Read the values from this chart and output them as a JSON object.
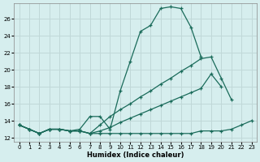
{
  "title": "",
  "xlabel": "Humidex (Indice chaleur)",
  "ylabel": "",
  "background_color": "#d6eeee",
  "grid_color": "#c0d8d8",
  "line_color": "#1a6b5a",
  "x_values": [
    0,
    1,
    2,
    3,
    4,
    5,
    6,
    7,
    8,
    9,
    10,
    11,
    12,
    13,
    14,
    15,
    16,
    17,
    18,
    19,
    20,
    21,
    22,
    23
  ],
  "series_peak": [
    13.5,
    13.0,
    12.5,
    13.0,
    13.0,
    12.8,
    13.0,
    14.5,
    14.5,
    13.0,
    17.5,
    21.0,
    24.5,
    25.2,
    27.2,
    27.4,
    27.2,
    25.0,
    21.5,
    null,
    null,
    null,
    null,
    null
  ],
  "series_diag1": [
    13.5,
    13.0,
    12.5,
    13.0,
    13.0,
    12.8,
    12.8,
    12.5,
    13.5,
    14.5,
    15.3,
    16.0,
    16.8,
    17.5,
    18.3,
    19.0,
    19.8,
    20.5,
    21.3,
    21.5,
    19.0,
    16.5,
    null,
    null
  ],
  "series_diag2": [
    13.5,
    13.0,
    12.5,
    13.0,
    13.0,
    12.8,
    12.8,
    12.5,
    12.8,
    13.2,
    13.8,
    14.3,
    14.8,
    15.3,
    15.8,
    16.3,
    16.8,
    17.3,
    17.8,
    19.5,
    18.0,
    null,
    null,
    null
  ],
  "series_flat": [
    13.5,
    13.0,
    12.5,
    13.0,
    13.0,
    12.8,
    12.8,
    12.5,
    12.5,
    12.5,
    12.5,
    12.5,
    12.5,
    12.5,
    12.5,
    12.5,
    12.5,
    12.5,
    12.8,
    12.8,
    12.8,
    13.0,
    13.5,
    14.0
  ],
  "ylim": [
    11.5,
    27.8
  ],
  "xlim": [
    -0.5,
    23.5
  ],
  "yticks": [
    12,
    14,
    16,
    18,
    20,
    22,
    24,
    26
  ],
  "xticks": [
    0,
    1,
    2,
    3,
    4,
    5,
    6,
    7,
    8,
    9,
    10,
    11,
    12,
    13,
    14,
    15,
    16,
    17,
    18,
    19,
    20,
    21,
    22,
    23
  ]
}
